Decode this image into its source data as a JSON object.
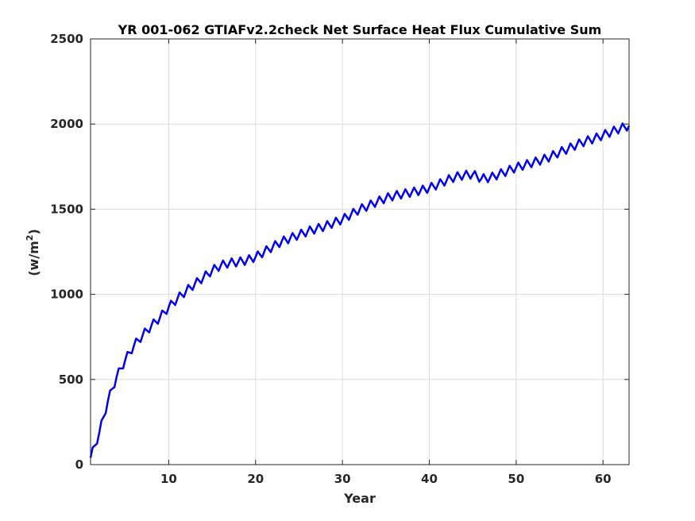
{
  "chart_data": {
    "type": "line",
    "title": "YR 001-062 GTIAFv2.2check Net Surface Heat Flux  Cumulative Sum",
    "xlabel": "Year",
    "ylabel_main": "(w/m",
    "ylabel_sup": "2",
    "ylabel_close": ")",
    "xlim": [
      1,
      63
    ],
    "ylim": [
      0,
      2500
    ],
    "xticks": [
      10,
      20,
      30,
      40,
      50,
      60
    ],
    "xtick_labels": [
      "10",
      "20",
      "30",
      "40",
      "50",
      "60"
    ],
    "yticks": [
      0,
      500,
      1000,
      1500,
      2000,
      2500
    ],
    "ytick_labels": [
      "0",
      "500",
      "1000",
      "1500",
      "2000",
      "2500"
    ],
    "grid": true,
    "series": [
      {
        "color": "#0000ee",
        "seasonal_amplitude": 25,
        "x": [
          1,
          2,
          3,
          4,
          5,
          6,
          7,
          8,
          9,
          10,
          11,
          12,
          13,
          14,
          15,
          16,
          17,
          18,
          19,
          20,
          21,
          22,
          23,
          24,
          25,
          26,
          27,
          28,
          29,
          30,
          31,
          32,
          33,
          34,
          35,
          36,
          37,
          38,
          39,
          40,
          41,
          42,
          43,
          44,
          45,
          46,
          47,
          48,
          49,
          50,
          51,
          52,
          53,
          54,
          55,
          56,
          57,
          58,
          59,
          60,
          61,
          62,
          63
        ],
        "y": [
          40,
          185,
          375,
          515,
          615,
          700,
          760,
          815,
          865,
          925,
          975,
          1020,
          1060,
          1100,
          1140,
          1170,
          1185,
          1190,
          1200,
          1220,
          1250,
          1280,
          1310,
          1330,
          1350,
          1370,
          1385,
          1400,
          1420,
          1440,
          1470,
          1500,
          1520,
          1545,
          1565,
          1580,
          1590,
          1600,
          1610,
          1625,
          1645,
          1670,
          1690,
          1700,
          1705,
          1680,
          1685,
          1705,
          1725,
          1745,
          1760,
          1775,
          1790,
          1810,
          1835,
          1855,
          1880,
          1900,
          1915,
          1935,
          1955,
          1975,
          1990
        ]
      }
    ]
  }
}
